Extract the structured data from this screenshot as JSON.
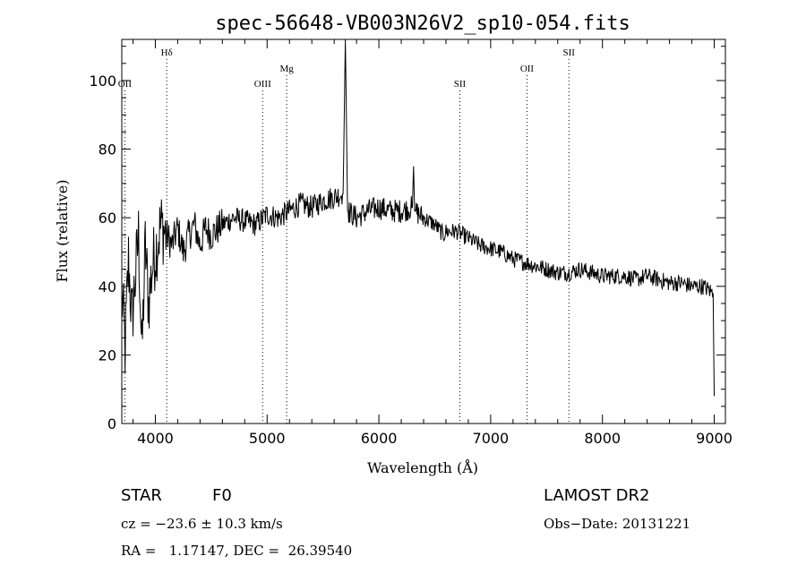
{
  "title": "spec-56648-VB003N26V2_sp10-054.fits",
  "chart_data": {
    "type": "line",
    "xlabel": "Wavelength (Å)",
    "ylabel": "Flux (relative)",
    "xlim": [
      3700,
      9100
    ],
    "ylim": [
      0,
      112
    ],
    "xticks": [
      "4000",
      "5000",
      "6000",
      "7000",
      "8000",
      "9000"
    ],
    "yticks": [
      "0",
      "20",
      "40",
      "60",
      "80",
      "100"
    ],
    "grid": false,
    "series": [
      {
        "x": [
          3700,
          3730,
          3760,
          3790,
          3820,
          3850,
          3880,
          3910,
          3940,
          3970,
          4000,
          4050,
          4100,
          4150,
          4200,
          4250,
          4300,
          4350,
          4400,
          4450,
          4500,
          4600,
          4700,
          4800,
          4900,
          5000,
          5100,
          5200,
          5300,
          5400,
          5500,
          5600,
          5680,
          5700,
          5720,
          5800,
          5900,
          6000,
          6100,
          6200,
          6300,
          6310,
          6320,
          6400,
          6500,
          6580,
          6600,
          6700,
          6800,
          6900,
          7000,
          7100,
          7200,
          7300,
          7400,
          7500,
          7600,
          7700,
          7800,
          7900,
          8000,
          8100,
          8200,
          8300,
          8400,
          8500,
          8600,
          8700,
          8800,
          8900,
          8950,
          8990,
          9000
        ],
        "y": [
          38,
          22,
          48,
          30,
          42,
          55,
          20,
          52,
          35,
          45,
          50,
          58,
          55,
          52,
          57,
          50,
          55,
          58,
          52,
          57,
          55,
          58,
          60,
          59,
          58,
          61,
          60,
          62,
          64,
          63,
          65,
          66,
          67,
          112,
          62,
          60,
          62,
          63,
          62,
          62,
          63,
          75,
          62,
          60,
          58,
          55,
          56,
          56,
          54,
          52,
          51,
          50,
          48,
          47,
          46,
          45,
          44,
          44,
          45,
          44,
          43,
          43,
          43,
          42,
          43,
          42,
          41,
          41,
          40,
          40,
          39,
          38,
          8
        ]
      }
    ],
    "line_markers": [
      {
        "label": "OII",
        "x": 3727,
        "row": "low"
      },
      {
        "label": "Hδ",
        "x": 4102,
        "row": "high"
      },
      {
        "label": "OIII",
        "x": 4960,
        "row": "low"
      },
      {
        "label": "Mg",
        "x": 5175,
        "row": "mid"
      },
      {
        "label": "SII",
        "x": 6724,
        "row": "low"
      },
      {
        "label": "OII",
        "x": 7325,
        "row": "mid"
      },
      {
        "label": "SII",
        "x": 7700,
        "row": "high"
      }
    ]
  },
  "info": {
    "object_type": "STAR",
    "subclass": "F0",
    "survey": "LAMOST DR2",
    "cz": "cz = −23.6 ± 10.3 km/s",
    "obs_date": "Obs−Date: 20131221",
    "coords": "RA =   1.17147, DEC =  26.39540"
  }
}
